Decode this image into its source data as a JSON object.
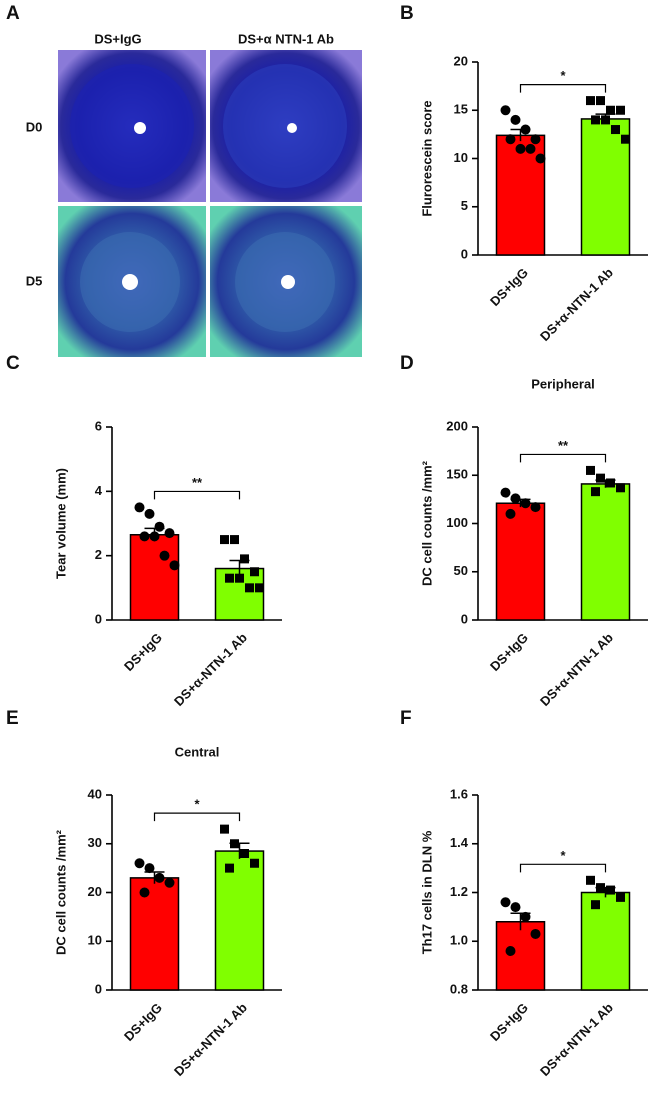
{
  "image_panel": {
    "label": "A",
    "columns": [
      "DS+IgG",
      "DS+α NTN-1 Ab"
    ],
    "rows": [
      "D0",
      "D5"
    ]
  },
  "chart_data": [
    {
      "type": "bar",
      "panel": "B",
      "ylabel": "Flurorescein score",
      "categories": [
        "DS+IgG",
        "DS+α-NTN-1 Ab"
      ],
      "colors": [
        "#ff0000",
        "#80ff00"
      ],
      "markers": [
        "circle",
        "square"
      ],
      "values": [
        12.4,
        14.1
      ],
      "errors": [
        0.6,
        0.5
      ],
      "points": [
        [
          15,
          14,
          13,
          12,
          12,
          11,
          11,
          10
        ],
        [
          16,
          16,
          15,
          15,
          14,
          14,
          13,
          12
        ]
      ],
      "ylim": [
        0,
        20
      ],
      "yticks": [
        0,
        5,
        10,
        15,
        20
      ],
      "significance": "*"
    },
    {
      "type": "bar",
      "panel": "C",
      "ylabel": "Tear volume (mm)",
      "categories": [
        "DS+IgG",
        "DS+α-NTN-1 Ab"
      ],
      "colors": [
        "#ff0000",
        "#80ff00"
      ],
      "markers": [
        "circle",
        "square"
      ],
      "values": [
        2.65,
        1.6
      ],
      "errors": [
        0.2,
        0.25
      ],
      "points": [
        [
          3.5,
          3.3,
          2.9,
          2.7,
          2.6,
          2.6,
          2.0,
          1.7
        ],
        [
          2.5,
          2.5,
          1.9,
          1.5,
          1.3,
          1.3,
          1.0,
          1.0
        ]
      ],
      "ylim": [
        0,
        6
      ],
      "yticks": [
        0,
        2,
        4,
        6
      ],
      "significance": "**"
    },
    {
      "type": "bar",
      "panel": "D",
      "title": "Peripheral",
      "ylabel": "DC cell counts /mm²",
      "categories": [
        "DS+IgG",
        "DS+α-NTN-1 Ab"
      ],
      "colors": [
        "#ff0000",
        "#80ff00"
      ],
      "markers": [
        "circle",
        "square"
      ],
      "values": [
        121,
        141
      ],
      "errors": [
        4,
        4
      ],
      "points": [
        [
          132,
          126,
          121,
          117,
          110
        ],
        [
          155,
          147,
          142,
          137,
          133
        ]
      ],
      "ylim": [
        0,
        200
      ],
      "yticks": [
        0,
        50,
        100,
        150,
        200
      ],
      "significance": "**"
    },
    {
      "type": "bar",
      "panel": "E",
      "title": "Central",
      "ylabel": "DC cell counts /mm²",
      "categories": [
        "DS+IgG",
        "DS+α-NTN-1 Ab"
      ],
      "colors": [
        "#ff0000",
        "#80ff00"
      ],
      "markers": [
        "circle",
        "square"
      ],
      "values": [
        23,
        28.5
      ],
      "errors": [
        1.2,
        1.6
      ],
      "points": [
        [
          26,
          25,
          23,
          22,
          20
        ],
        [
          33,
          30,
          28,
          26,
          25
        ]
      ],
      "ylim": [
        0,
        40
      ],
      "yticks": [
        0,
        10,
        20,
        30,
        40
      ],
      "significance": "*"
    },
    {
      "type": "bar",
      "panel": "F",
      "ylabel": "Th17 cells in DLN %",
      "categories": [
        "DS+IgG",
        "DS+α-NTN-1 Ab"
      ],
      "colors": [
        "#ff0000",
        "#80ff00"
      ],
      "markers": [
        "circle",
        "square"
      ],
      "values": [
        1.08,
        1.2
      ],
      "errors": [
        0.035,
        0.02
      ],
      "points": [
        [
          1.16,
          1.14,
          1.1,
          1.03,
          0.96
        ],
        [
          1.25,
          1.22,
          1.21,
          1.18,
          1.15
        ]
      ],
      "ylim": [
        0.8,
        1.6
      ],
      "yticks": [
        0.8,
        {
          "value": 1,
          "label": "1.0"
        },
        1.2,
        1.4,
        1.6
      ],
      "significance": "*"
    }
  ]
}
